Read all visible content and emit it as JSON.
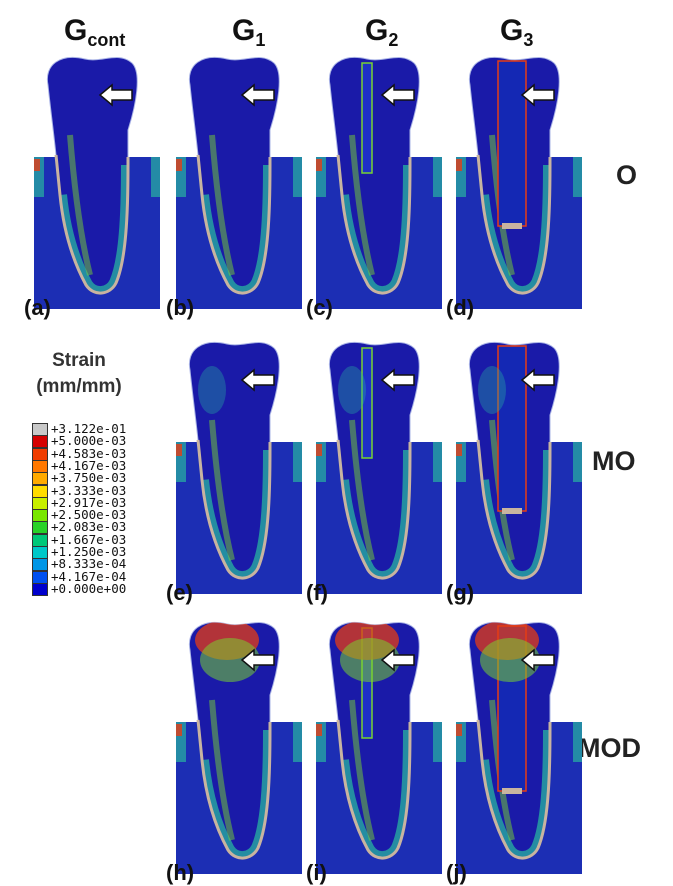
{
  "columns": [
    {
      "main": "G",
      "sub": "cont"
    },
    {
      "main": "G",
      "sub": "1"
    },
    {
      "main": "G",
      "sub": "2"
    },
    {
      "main": "G",
      "sub": "3"
    }
  ],
  "rows": [
    "O",
    "MO",
    "MOD"
  ],
  "panels": {
    "a": "(a)",
    "b": "(b)",
    "c": "(c)",
    "d": "(d)",
    "e": "(e)",
    "f": "(f)",
    "g": "(g)",
    "h": "(h)",
    "i": "(i)",
    "j": "(j)"
  },
  "legend": {
    "title_line1": "Strain",
    "title_line2": "(mm/mm)",
    "entries": [
      {
        "label": "+3.122e-01",
        "color": "#c8c8c8"
      },
      {
        "label": "+5.000e-03",
        "color": "#d40000"
      },
      {
        "label": "+4.583e-03",
        "color": "#f03c00"
      },
      {
        "label": "+4.167e-03",
        "color": "#ff7800"
      },
      {
        "label": "+3.750e-03",
        "color": "#ffaa00"
      },
      {
        "label": "+3.333e-03",
        "color": "#ffdc00"
      },
      {
        "label": "+2.917e-03",
        "color": "#c8f000"
      },
      {
        "label": "+2.500e-03",
        "color": "#78e600"
      },
      {
        "label": "+2.083e-03",
        "color": "#28d228"
      },
      {
        "label": "+1.667e-03",
        "color": "#00c878"
      },
      {
        "label": "+1.250e-03",
        "color": "#00c8c8"
      },
      {
        "label": "+8.333e-04",
        "color": "#0096e6"
      },
      {
        "label": "+4.167e-04",
        "color": "#0050f0"
      },
      {
        "label": "+0.000e+00",
        "color": "#0000cc"
      }
    ]
  },
  "colors": {
    "tooth": "#1a1aa8",
    "bone": "#1c2eb4",
    "pdl": "#c8b4a0",
    "hot": "#e63c14",
    "warm": "#78d232",
    "mid": "#28b4a0"
  },
  "icons": [
    "arrow-left-icon"
  ]
}
